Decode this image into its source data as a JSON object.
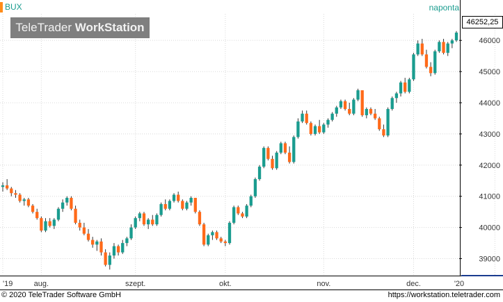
{
  "symbol": "BUX",
  "logo": {
    "light": "TeleTrader ",
    "bold": "WorkStation"
  },
  "period": "naponta",
  "last_price": "46252,25",
  "footer": {
    "copyright": "© 2020 TeleTrader Software GmbH",
    "url": "https://workstation.teletrader.com"
  },
  "colors": {
    "up": "#1a9c8f",
    "down": "#ff6a1a",
    "marker": "#ff8c1a"
  },
  "chart_data": {
    "type": "candlestick",
    "ylim": [
      38500,
      46850
    ],
    "yticks": [
      39000,
      40000,
      41000,
      42000,
      43000,
      44000,
      45000,
      46000
    ],
    "xtick_labels": [
      {
        "label": "'19",
        "index": 0
      },
      {
        "label": "aug.",
        "index": 9
      },
      {
        "label": "szept.",
        "index": 31
      },
      {
        "label": "okt.",
        "index": 52
      },
      {
        "label": "nov.",
        "index": 75
      },
      {
        "label": "dec.",
        "index": 96
      },
      {
        "label": "'20",
        "index": 115
      }
    ],
    "candles": [
      [
        41300,
        41450,
        41150,
        41350
      ],
      [
        41350,
        41550,
        41200,
        41250
      ],
      [
        41250,
        41300,
        41000,
        41100
      ],
      [
        41100,
        41200,
        40950,
        41050
      ],
      [
        41050,
        41100,
        40800,
        40850
      ],
      [
        40850,
        40950,
        40700,
        40900
      ],
      [
        40900,
        40950,
        40650,
        40700
      ],
      [
        40700,
        40750,
        40450,
        40500
      ],
      [
        40500,
        40600,
        40250,
        40300
      ],
      [
        40300,
        40350,
        39850,
        39900
      ],
      [
        39900,
        40300,
        39850,
        40200
      ],
      [
        40200,
        40300,
        40000,
        40050
      ],
      [
        40050,
        40300,
        39950,
        40250
      ],
      [
        40250,
        40650,
        40200,
        40600
      ],
      [
        40600,
        40900,
        40500,
        40800
      ],
      [
        40800,
        41000,
        40700,
        40950
      ],
      [
        40950,
        41000,
        40550,
        40600
      ],
      [
        40600,
        40700,
        40100,
        40150
      ],
      [
        40150,
        40250,
        39900,
        40000
      ],
      [
        40000,
        40150,
        39750,
        39800
      ],
      [
        39800,
        39950,
        39550,
        39600
      ],
      [
        39600,
        39700,
        39350,
        39450
      ],
      [
        39450,
        39600,
        39250,
        39550
      ],
      [
        39550,
        39650,
        39100,
        39200
      ],
      [
        39200,
        39300,
        38750,
        38800
      ],
      [
        38800,
        39200,
        38650,
        39100
      ],
      [
        39100,
        39500,
        39000,
        39400
      ],
      [
        39400,
        39450,
        39100,
        39200
      ],
      [
        39200,
        39600,
        39150,
        39500
      ],
      [
        39500,
        39700,
        39400,
        39650
      ],
      [
        39650,
        40100,
        39600,
        40000
      ],
      [
        40000,
        40350,
        39950,
        40300
      ],
      [
        40300,
        40500,
        40200,
        40450
      ],
      [
        40450,
        40500,
        40050,
        40100
      ],
      [
        40100,
        40300,
        39950,
        40250
      ],
      [
        40250,
        40400,
        40050,
        40100
      ],
      [
        40100,
        40450,
        40050,
        40400
      ],
      [
        40400,
        40800,
        40350,
        40750
      ],
      [
        40750,
        40900,
        40550,
        40600
      ],
      [
        40600,
        40900,
        40550,
        40850
      ],
      [
        40850,
        41100,
        40800,
        41050
      ],
      [
        41050,
        41150,
        40800,
        40850
      ],
      [
        40850,
        40900,
        40550,
        40600
      ],
      [
        40600,
        40850,
        40550,
        40800
      ],
      [
        40800,
        41000,
        40700,
        40950
      ],
      [
        40950,
        40950,
        40450,
        40500
      ],
      [
        40500,
        40550,
        40050,
        40100
      ],
      [
        40100,
        40150,
        39400,
        39450
      ],
      [
        39450,
        39800,
        39400,
        39750
      ],
      [
        39750,
        39900,
        39600,
        39850
      ],
      [
        39850,
        39900,
        39600,
        39650
      ],
      [
        39650,
        39700,
        39500,
        39550
      ],
      [
        39550,
        39600,
        39400,
        39500
      ],
      [
        39500,
        40200,
        39450,
        40150
      ],
      [
        40150,
        40700,
        40100,
        40650
      ],
      [
        40650,
        40700,
        40400,
        40450
      ],
      [
        40450,
        40500,
        40300,
        40350
      ],
      [
        40350,
        40750,
        40300,
        40700
      ],
      [
        40700,
        41050,
        40650,
        41000
      ],
      [
        41000,
        41600,
        40950,
        41550
      ],
      [
        41550,
        42000,
        41500,
        41950
      ],
      [
        41950,
        42600,
        41900,
        42550
      ],
      [
        42550,
        42600,
        42150,
        42200
      ],
      [
        42200,
        42300,
        41850,
        41900
      ],
      [
        41900,
        42450,
        41850,
        42400
      ],
      [
        42400,
        42750,
        42350,
        42700
      ],
      [
        42700,
        42750,
        42350,
        42400
      ],
      [
        42400,
        42600,
        42050,
        42100
      ],
      [
        42100,
        42950,
        42050,
        42900
      ],
      [
        42900,
        43500,
        42850,
        43400
      ],
      [
        43400,
        43750,
        43350,
        43650
      ],
      [
        43650,
        43750,
        43300,
        43350
      ],
      [
        43350,
        43400,
        42950,
        43000
      ],
      [
        43000,
        43300,
        42950,
        43250
      ],
      [
        43250,
        43450,
        43000,
        43050
      ],
      [
        43050,
        43350,
        43000,
        43300
      ],
      [
        43300,
        43500,
        43200,
        43450
      ],
      [
        43450,
        43700,
        43400,
        43650
      ],
      [
        43650,
        43900,
        43550,
        43850
      ],
      [
        43850,
        44100,
        43800,
        44050
      ],
      [
        44050,
        44100,
        43750,
        43800
      ],
      [
        43800,
        44000,
        43600,
        43650
      ],
      [
        43650,
        44150,
        43600,
        44100
      ],
      [
        44100,
        44450,
        44050,
        44400
      ],
      [
        44400,
        44400,
        43550,
        43600
      ],
      [
        43600,
        43850,
        43500,
        43800
      ],
      [
        43800,
        43850,
        43600,
        43650
      ],
      [
        43650,
        43800,
        43450,
        43500
      ],
      [
        43500,
        43550,
        43100,
        43150
      ],
      [
        43150,
        43300,
        42900,
        42950
      ],
      [
        42950,
        43850,
        42900,
        43800
      ],
      [
        43800,
        44200,
        43750,
        44150
      ],
      [
        44150,
        44350,
        44000,
        44300
      ],
      [
        44300,
        44700,
        44200,
        44650
      ],
      [
        44650,
        44800,
        44300,
        44350
      ],
      [
        44350,
        44800,
        44300,
        44750
      ],
      [
        44750,
        45600,
        44700,
        45550
      ],
      [
        45550,
        46000,
        45500,
        45900
      ],
      [
        45900,
        46050,
        45500,
        45550
      ],
      [
        45550,
        45700,
        45100,
        45150
      ],
      [
        45150,
        45300,
        44850,
        44950
      ],
      [
        44950,
        45700,
        44900,
        45650
      ],
      [
        45650,
        46000,
        45600,
        45950
      ],
      [
        45950,
        46050,
        45550,
        45600
      ],
      [
        45600,
        45950,
        45500,
        45900
      ],
      [
        45900,
        46050,
        45750,
        46000
      ],
      [
        46000,
        46300,
        45950,
        46250
      ]
    ]
  }
}
